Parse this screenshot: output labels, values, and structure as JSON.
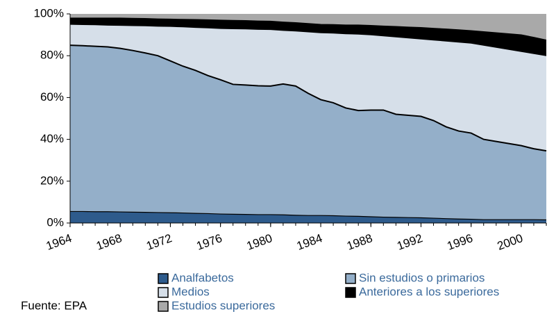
{
  "chart_data": {
    "type": "stacked_area",
    "x": [
      1964,
      1965,
      1966,
      1967,
      1968,
      1969,
      1970,
      1971,
      1972,
      1973,
      1974,
      1975,
      1976,
      1977,
      1978,
      1979,
      1980,
      1981,
      1982,
      1983,
      1984,
      1985,
      1986,
      1987,
      1988,
      1989,
      1990,
      1991,
      1992,
      1993,
      1994,
      1995,
      1996,
      1997,
      1998,
      1999,
      2000,
      2001,
      2002
    ],
    "series": [
      {
        "name": "Analfabetos",
        "color": "#2e5b8c",
        "values": [
          5.5,
          5.5,
          5.4,
          5.4,
          5.3,
          5.2,
          5.1,
          5.0,
          4.9,
          4.8,
          4.6,
          4.5,
          4.3,
          4.2,
          4.1,
          4.0,
          4.0,
          3.9,
          3.7,
          3.6,
          3.6,
          3.5,
          3.3,
          3.2,
          3.0,
          2.8,
          2.7,
          2.6,
          2.5,
          2.3,
          2.1,
          1.9,
          1.8,
          1.6,
          1.6,
          1.6,
          1.6,
          1.6,
          1.5
        ]
      },
      {
        "name": "Sin estudios o primarios",
        "color": "#94afc9",
        "values": [
          79.5,
          79.3,
          79.1,
          78.8,
          78.2,
          77.3,
          76.2,
          75.0,
          72.6,
          70.2,
          68.4,
          66.0,
          64.2,
          62.1,
          61.9,
          61.6,
          61.5,
          62.6,
          61.8,
          58.4,
          55.4,
          54.0,
          51.7,
          50.6,
          51.0,
          51.2,
          49.3,
          48.9,
          48.5,
          46.7,
          43.9,
          42.1,
          41.2,
          38.4,
          37.4,
          36.4,
          35.4,
          33.9,
          33.0
        ]
      },
      {
        "name": "Medios",
        "color": "#d6dfe9",
        "values": [
          10.0,
          10.1,
          10.3,
          10.4,
          11.0,
          11.9,
          13.0,
          14.1,
          16.5,
          18.8,
          20.5,
          22.8,
          24.5,
          26.6,
          26.8,
          27.0,
          27.0,
          25.6,
          26.3,
          29.4,
          32.0,
          33.3,
          35.5,
          36.5,
          36.0,
          35.5,
          37.0,
          37.0,
          37.0,
          38.5,
          41.0,
          42.5,
          43.0,
          45.0,
          45.0,
          45.0,
          45.0,
          45.5,
          45.5
        ]
      },
      {
        "name": "Anteriores a los superiores",
        "color": "#000000",
        "values": [
          3.0,
          3.1,
          3.2,
          3.4,
          3.5,
          3.5,
          3.5,
          3.5,
          3.5,
          3.6,
          3.8,
          3.9,
          4.0,
          4.0,
          4.0,
          4.0,
          4.0,
          4.0,
          4.0,
          4.0,
          4.0,
          4.1,
          4.2,
          4.4,
          4.5,
          4.7,
          5.0,
          5.2,
          5.5,
          5.6,
          5.8,
          5.9,
          6.0,
          6.5,
          7.0,
          7.5,
          8.0,
          7.8,
          7.5
        ]
      },
      {
        "name": "Estudios superiores",
        "color": "#a9a9a9",
        "values": [
          2.0,
          2.0,
          2.0,
          2.0,
          2.0,
          2.1,
          2.2,
          2.4,
          2.5,
          2.6,
          2.7,
          2.8,
          3.0,
          3.1,
          3.2,
          3.4,
          3.5,
          3.9,
          4.2,
          4.6,
          5.0,
          5.1,
          5.3,
          5.3,
          5.5,
          5.8,
          6.0,
          6.3,
          6.5,
          6.9,
          7.2,
          7.6,
          8.0,
          8.5,
          9.0,
          9.5,
          10.0,
          11.2,
          12.5
        ]
      }
    ],
    "xlim": [
      1964,
      2002
    ],
    "xticks": [
      1964,
      1968,
      1972,
      1976,
      1980,
      1984,
      1988,
      1992,
      1996,
      2000
    ],
    "ylim": [
      0,
      100
    ],
    "yticks": [
      {
        "value": 0,
        "label": "0%"
      },
      {
        "value": 20,
        "label": "20%"
      },
      {
        "value": 40,
        "label": "40%"
      },
      {
        "value": 60,
        "label": "60%"
      },
      {
        "value": 80,
        "label": "80%"
      },
      {
        "value": 100,
        "label": "100%"
      }
    ],
    "source": "Fuente: EPA"
  }
}
